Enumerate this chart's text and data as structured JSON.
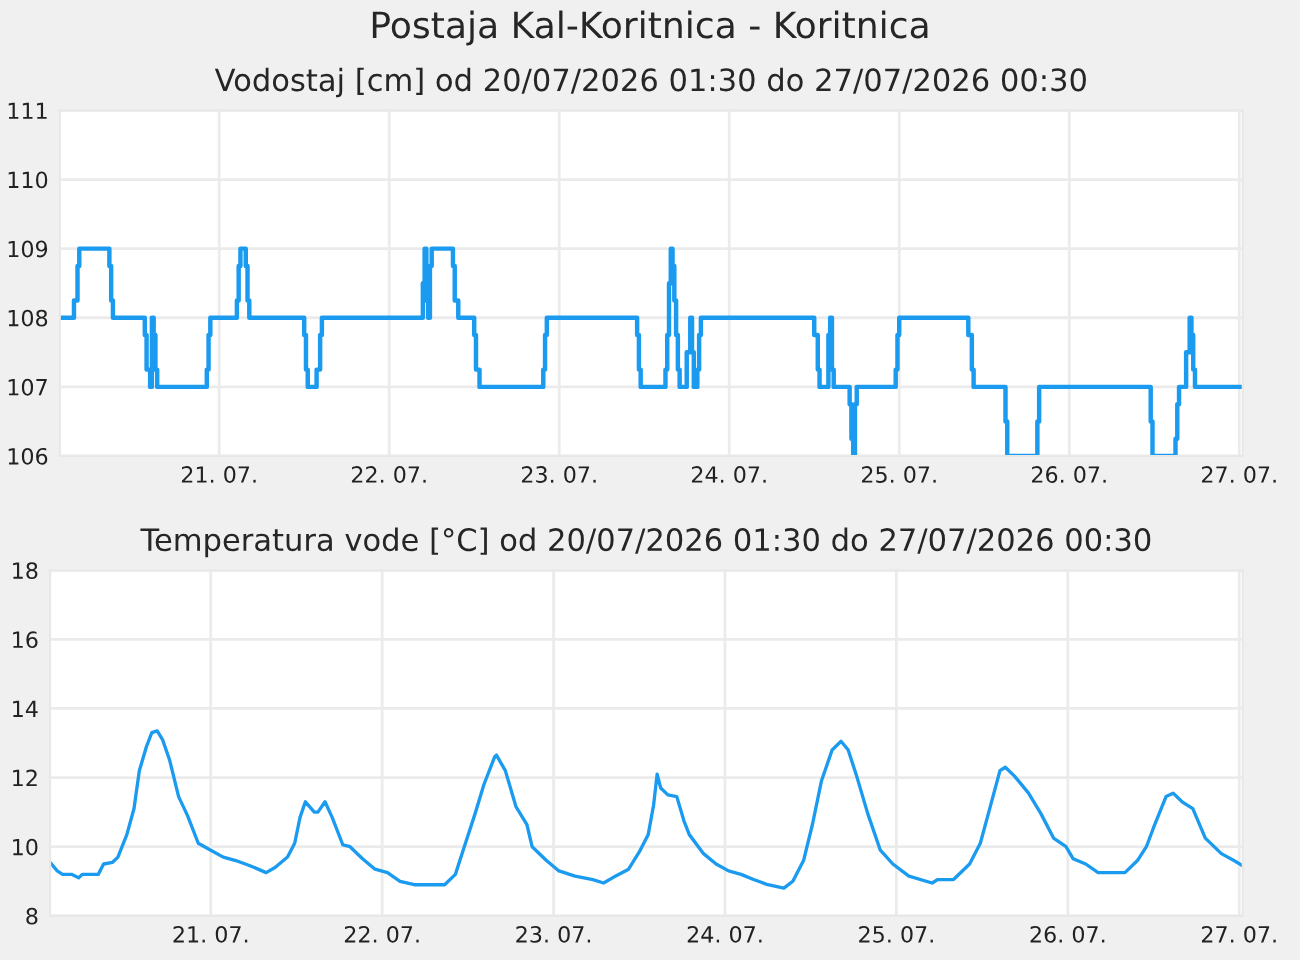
{
  "chart_data": [
    {
      "type": "step",
      "title": "Postaja Kal-Koritnica - Koritnica",
      "subtitle": "Vodostaj [cm] od 20/07/2026 01:30 do 27/07/2026 00:30",
      "x": [
        "2026-07-20T01:30",
        "2026-07-20T03:30",
        "2026-07-20T04:00",
        "2026-07-20T04:15",
        "2026-07-20T08:30",
        "2026-07-20T08:45",
        "2026-07-20T09:00",
        "2026-07-20T13:30",
        "2026-07-20T13:45",
        "2026-07-20T14:15",
        "2026-07-20T14:30",
        "2026-07-20T14:45",
        "2026-07-20T15:00",
        "2026-07-20T15:15",
        "2026-07-20T22:15",
        "2026-07-20T22:30",
        "2026-07-20T22:45",
        "2026-07-21T02:30",
        "2026-07-21T02:45",
        "2026-07-21T03:00",
        "2026-07-21T03:45",
        "2026-07-21T04:00",
        "2026-07-21T04:15",
        "2026-07-21T12:00",
        "2026-07-21T12:15",
        "2026-07-21T12:30",
        "2026-07-21T13:45",
        "2026-07-21T14:15",
        "2026-07-21T14:30",
        "2026-07-22T04:45",
        "2026-07-22T05:00",
        "2026-07-22T05:15",
        "2026-07-22T05:30",
        "2026-07-22T05:45",
        "2026-07-22T06:00",
        "2026-07-22T09:00",
        "2026-07-22T09:15",
        "2026-07-22T09:45",
        "2026-07-22T12:00",
        "2026-07-22T12:15",
        "2026-07-22T12:45",
        "2026-07-22T21:45",
        "2026-07-22T22:00",
        "2026-07-22T22:15",
        "2026-07-23T11:00",
        "2026-07-23T11:15",
        "2026-07-23T11:30",
        "2026-07-23T15:00",
        "2026-07-23T15:15",
        "2026-07-23T15:30",
        "2026-07-23T15:45",
        "2026-07-23T16:00",
        "2026-07-23T16:15",
        "2026-07-23T16:30",
        "2026-07-23T16:45",
        "2026-07-23T17:00",
        "2026-07-23T18:00",
        "2026-07-23T18:30",
        "2026-07-23T18:45",
        "2026-07-23T19:00",
        "2026-07-23T19:30",
        "2026-07-23T19:45",
        "2026-07-23T20:00",
        "2026-07-24T12:00",
        "2026-07-24T12:30",
        "2026-07-24T12:45",
        "2026-07-24T14:00",
        "2026-07-24T14:15",
        "2026-07-24T14:30",
        "2026-07-24T14:45",
        "2026-07-24T17:00",
        "2026-07-24T17:15",
        "2026-07-24T17:30",
        "2026-07-24T17:45",
        "2026-07-24T18:00",
        "2026-07-24T23:30",
        "2026-07-24T23:45",
        "2026-07-25T00:00",
        "2026-07-25T09:45",
        "2026-07-25T10:15",
        "2026-07-25T10:30",
        "2026-07-25T15:00",
        "2026-07-25T15:15",
        "2026-07-25T19:30",
        "2026-07-25T19:45",
        "2026-07-26T11:30",
        "2026-07-26T11:45",
        "2026-07-26T15:00",
        "2026-07-26T15:15",
        "2026-07-26T15:30",
        "2026-07-26T16:30",
        "2026-07-26T17:00",
        "2026-07-26T17:15",
        "2026-07-26T17:30",
        "2026-07-26T17:45",
        "2026-07-27T00:30"
      ],
      "series": [
        {
          "color": "#1a9bf0",
          "values": [
            108,
            108.25,
            108.75,
            109,
            108.75,
            108.25,
            108,
            107.75,
            107.25,
            107,
            108,
            107.75,
            107.25,
            107,
            107.25,
            107.75,
            108,
            108.25,
            108.75,
            109,
            108.75,
            108.25,
            108,
            107.75,
            107.25,
            107,
            107.25,
            107.75,
            108,
            108.5,
            109,
            108.25,
            108,
            108.75,
            109,
            108.75,
            108.25,
            108,
            107.75,
            107.25,
            107,
            107.25,
            107.75,
            108,
            107.75,
            107.25,
            107,
            107.25,
            107.75,
            108.5,
            109,
            108.75,
            108.25,
            107.75,
            107.25,
            107,
            107.5,
            108,
            107.5,
            107,
            107.25,
            107.75,
            108,
            107.75,
            107.25,
            107,
            107.75,
            108,
            107.25,
            107,
            106.75,
            106.25,
            106,
            106.75,
            107,
            107.25,
            107.75,
            108,
            107.75,
            107.25,
            107,
            106.5,
            106,
            106.5,
            107,
            106.5,
            106,
            106.25,
            106.75,
            107,
            107.5,
            108,
            107.75,
            107.25,
            107,
            107
          ]
        }
      ],
      "xlim": [
        "2026-07-20T01:30",
        "2026-07-27T00:30"
      ],
      "xticks": [
        {
          "value": "2026-07-21",
          "label": "21. 07."
        },
        {
          "value": "2026-07-22",
          "label": "22. 07."
        },
        {
          "value": "2026-07-23",
          "label": "23. 07."
        },
        {
          "value": "2026-07-24",
          "label": "24. 07."
        },
        {
          "value": "2026-07-25",
          "label": "25. 07."
        },
        {
          "value": "2026-07-26",
          "label": "26. 07."
        },
        {
          "value": "2026-07-27",
          "label": "27. 07."
        }
      ],
      "ylim": [
        106,
        111
      ],
      "yticks": [
        106,
        107,
        108,
        109,
        110,
        111
      ],
      "grid": true
    },
    {
      "type": "line",
      "title": "Temperatura vode [°C] od 20/07/2026 01:30 do 27/07/2026 00:30",
      "x": [
        "2026-07-20T01:30",
        "2026-07-20T02:30",
        "2026-07-20T03:15",
        "2026-07-20T04:30",
        "2026-07-20T05:30",
        "2026-07-20T06:00",
        "2026-07-20T08:15",
        "2026-07-20T09:00",
        "2026-07-20T10:15",
        "2026-07-20T11:00",
        "2026-07-20T12:15",
        "2026-07-20T13:15",
        "2026-07-20T14:00",
        "2026-07-20T15:00",
        "2026-07-20T15:45",
        "2026-07-20T16:30",
        "2026-07-20T17:15",
        "2026-07-20T18:15",
        "2026-07-20T19:30",
        "2026-07-20T20:45",
        "2026-07-20T22:15",
        "2026-07-21T00:00",
        "2026-07-21T01:45",
        "2026-07-21T03:30",
        "2026-07-21T05:30",
        "2026-07-21T07:45",
        "2026-07-21T09:00",
        "2026-07-21T10:45",
        "2026-07-21T11:45",
        "2026-07-21T12:30",
        "2026-07-21T13:15",
        "2026-07-21T14:30",
        "2026-07-21T15:00",
        "2026-07-21T16:00",
        "2026-07-21T17:00",
        "2026-07-21T18:30",
        "2026-07-21T19:30",
        "2026-07-21T21:15",
        "2026-07-21T23:00",
        "2026-07-22T00:45",
        "2026-07-22T02:30",
        "2026-07-22T04:30",
        "2026-07-22T08:45",
        "2026-07-22T10:15",
        "2026-07-22T11:30",
        "2026-07-22T13:00",
        "2026-07-22T14:15",
        "2026-07-22T15:45",
        "2026-07-22T16:00",
        "2026-07-22T17:15",
        "2026-07-22T18:45",
        "2026-07-22T20:15",
        "2026-07-22T21:00",
        "2026-07-22T23:00",
        "2026-07-23T00:45",
        "2026-07-23T03:00",
        "2026-07-23T05:30",
        "2026-07-23T07:00",
        "2026-07-23T08:15",
        "2026-07-23T10:30",
        "2026-07-23T12:00",
        "2026-07-23T13:15",
        "2026-07-23T14:00",
        "2026-07-23T14:30",
        "2026-07-23T15:00",
        "2026-07-23T16:00",
        "2026-07-23T17:15",
        "2026-07-23T18:15",
        "2026-07-23T19:00",
        "2026-07-23T21:00",
        "2026-07-23T22:45",
        "2026-07-24T00:30",
        "2026-07-24T02:15",
        "2026-07-24T04:00",
        "2026-07-24T06:00",
        "2026-07-24T08:15",
        "2026-07-24T09:30",
        "2026-07-24T11:00",
        "2026-07-24T12:15",
        "2026-07-24T13:30",
        "2026-07-24T15:00",
        "2026-07-24T16:15",
        "2026-07-24T17:15",
        "2026-07-24T18:30",
        "2026-07-24T20:00",
        "2026-07-24T21:45",
        "2026-07-24T23:30",
        "2026-07-25T01:45",
        "2026-07-25T05:00",
        "2026-07-25T05:45",
        "2026-07-25T08:00",
        "2026-07-25T10:15",
        "2026-07-25T11:45",
        "2026-07-25T13:00",
        "2026-07-25T14:30",
        "2026-07-25T15:15",
        "2026-07-25T16:30",
        "2026-07-25T18:30",
        "2026-07-25T20:15",
        "2026-07-25T22:00",
        "2026-07-25T23:45",
        "2026-07-26T00:45",
        "2026-07-26T02:30",
        "2026-07-26T04:15",
        "2026-07-26T08:00",
        "2026-07-26T09:45",
        "2026-07-26T11:00",
        "2026-07-26T12:00",
        "2026-07-26T13:45",
        "2026-07-26T14:45",
        "2026-07-26T16:00",
        "2026-07-26T17:30",
        "2026-07-26T19:15",
        "2026-07-26T21:30",
        "2026-07-26T23:15",
        "2026-07-27T00:30"
      ],
      "series": [
        {
          "color": "#1a9bf0",
          "values": [
            9.55,
            9.3,
            9.2,
            9.2,
            9.1,
            9.2,
            9.2,
            9.5,
            9.55,
            9.7,
            10.35,
            11.1,
            12.2,
            12.9,
            13.3,
            13.35,
            13.1,
            12.5,
            11.45,
            10.9,
            10.1,
            9.9,
            9.7,
            9.6,
            9.45,
            9.25,
            9.4,
            9.7,
            10.1,
            10.85,
            11.3,
            11.0,
            11.0,
            11.3,
            10.85,
            10.05,
            10.0,
            9.65,
            9.35,
            9.25,
            9.0,
            8.9,
            8.9,
            9.2,
            10.0,
            10.95,
            11.8,
            12.6,
            12.65,
            12.2,
            11.15,
            10.65,
            10.0,
            9.6,
            9.3,
            9.15,
            9.05,
            8.95,
            9.1,
            9.35,
            9.85,
            10.35,
            11.2,
            12.1,
            11.7,
            11.5,
            11.45,
            10.75,
            10.35,
            9.8,
            9.5,
            9.3,
            9.2,
            9.05,
            8.9,
            8.8,
            9.0,
            9.6,
            10.65,
            11.9,
            12.8,
            13.05,
            12.8,
            12.0,
            10.95,
            9.9,
            9.5,
            9.15,
            8.95,
            9.05,
            9.05,
            9.5,
            10.1,
            11.05,
            12.2,
            12.3,
            12.05,
            11.55,
            10.95,
            10.25,
            10.0,
            9.65,
            9.5,
            9.25,
            9.25,
            9.6,
            10.0,
            10.55,
            11.45,
            11.55,
            11.3,
            11.1,
            10.25,
            9.8,
            9.6,
            9.45
          ]
        }
      ],
      "xlim": [
        "2026-07-20T01:30",
        "2026-07-27T00:30"
      ],
      "xticks": [
        {
          "value": "2026-07-21",
          "label": "21. 07."
        },
        {
          "value": "2026-07-22",
          "label": "22. 07."
        },
        {
          "value": "2026-07-23",
          "label": "23. 07."
        },
        {
          "value": "2026-07-24",
          "label": "24. 07."
        },
        {
          "value": "2026-07-25",
          "label": "25. 07."
        },
        {
          "value": "2026-07-26",
          "label": "26. 07."
        },
        {
          "value": "2026-07-27",
          "label": "27. 07."
        }
      ],
      "ylim": [
        8,
        18
      ],
      "yticks": [
        8,
        10,
        12,
        14,
        16,
        18
      ],
      "grid": true
    }
  ]
}
